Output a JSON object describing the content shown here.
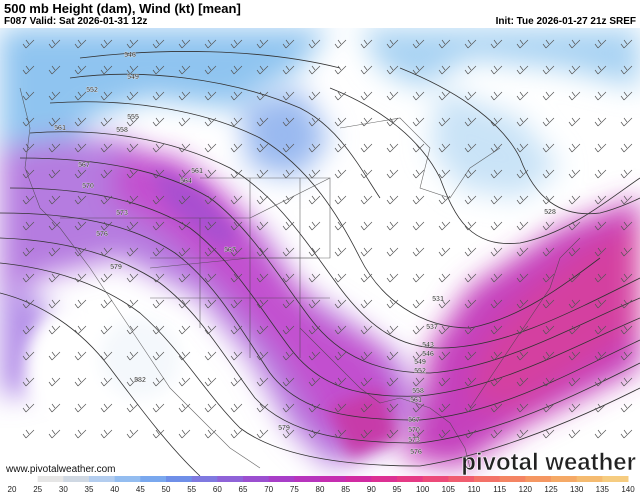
{
  "header": {
    "title": "500 mb Height (dam), Wind (kt) [mean]",
    "valid": "F087 Valid: Sat 2026-01-31 12z",
    "init": "Init: Tue 2026-01-27 21z SREF"
  },
  "map": {
    "contour_labels": [
      546,
      549,
      552,
      555,
      561,
      558,
      561,
      564,
      567,
      570,
      573,
      576,
      579,
      567,
      528,
      531,
      537,
      543,
      546,
      549,
      552,
      558,
      561,
      567,
      570,
      573,
      576,
      579,
      582
    ]
  },
  "footer": {
    "url": "www.pivotalweather.com",
    "logo": "pivotal weather"
  },
  "colorbar": {
    "ticks": [
      20,
      25,
      30,
      35,
      40,
      45,
      50,
      55,
      60,
      65,
      70,
      75,
      80,
      85,
      90,
      95,
      100,
      105,
      110,
      115,
      120,
      125,
      130,
      135,
      140
    ]
  }
}
